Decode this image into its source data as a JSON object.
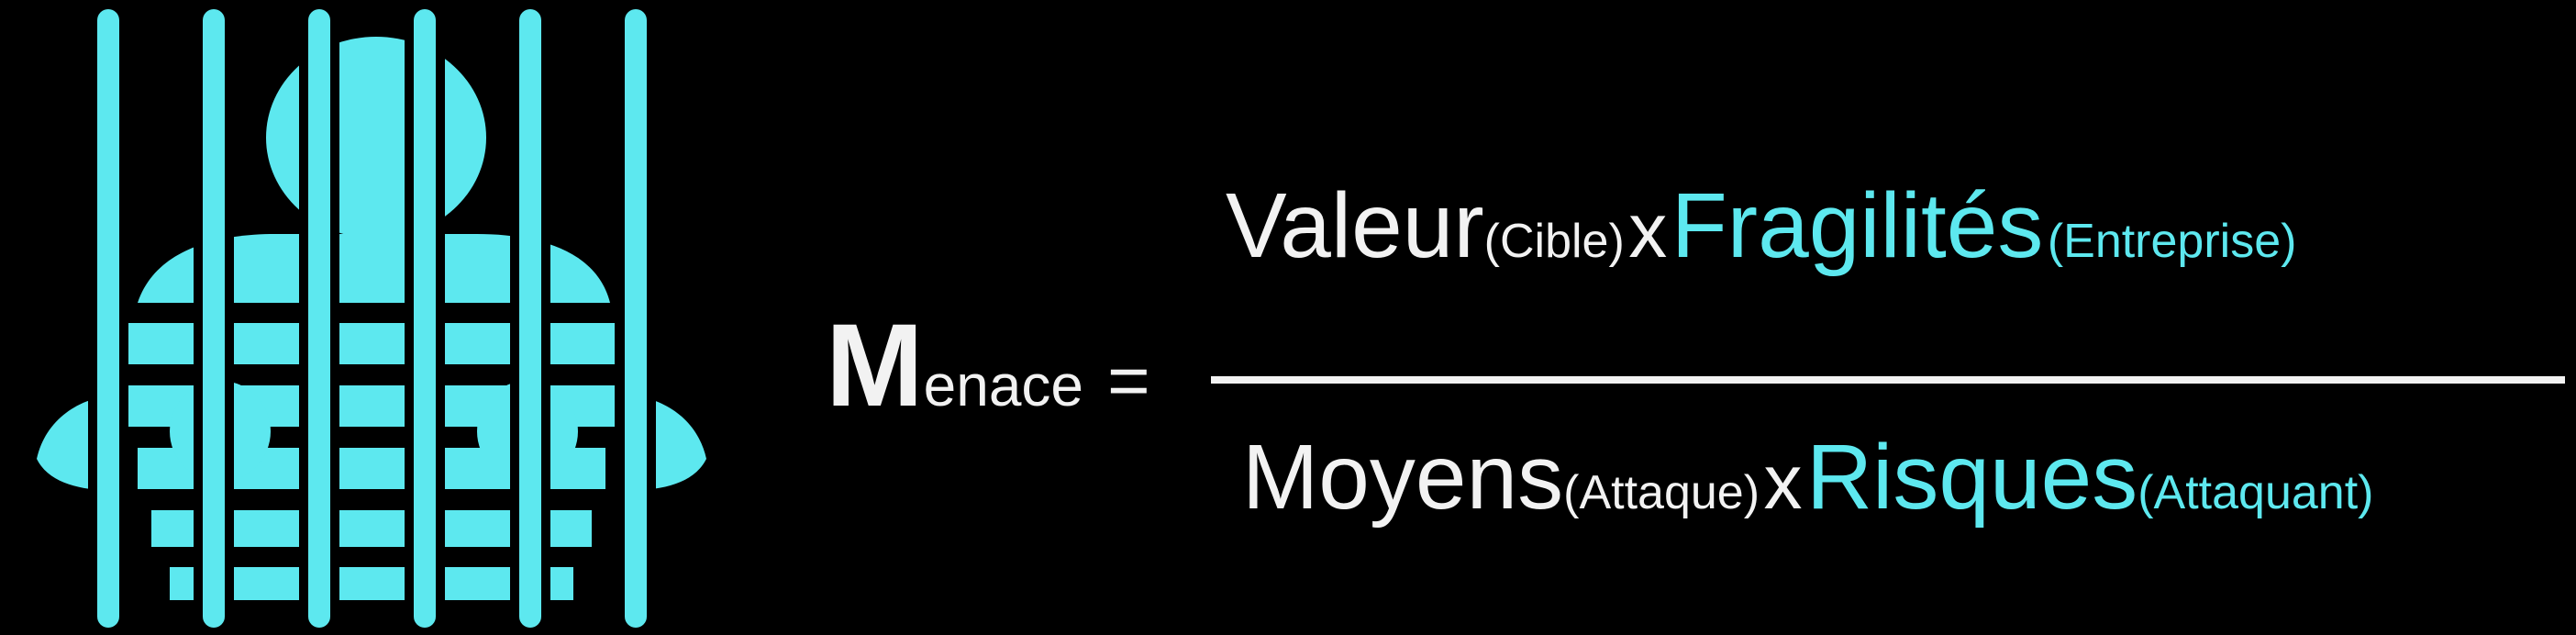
{
  "logo": {
    "icon": "prisoner-behind-bars-icon",
    "color": "#5de8ef"
  },
  "formula": {
    "lhs_initial": "M",
    "lhs_rest": "enace",
    "equals": "=",
    "numerator": {
      "term1": "Valeur",
      "term1_sub": "(Cible)",
      "operator": "x",
      "term2": "Fragilités",
      "term2_sub": "(Entreprise)"
    },
    "denominator": {
      "term1": "Moyens",
      "term1_sub": "(Attaque)",
      "operator": "x",
      "term2": "Risques",
      "term2_sub": "(Attaquant)"
    },
    "colors": {
      "text": "#f2f2f2",
      "accent": "#5de8ef"
    }
  }
}
